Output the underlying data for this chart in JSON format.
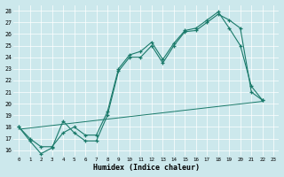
{
  "xlabel": "Humidex (Indice chaleur)",
  "bg_color": "#cce8ec",
  "grid_color": "#b8d8dc",
  "line_color": "#1a7a6a",
  "xlim": [
    -0.5,
    23.5
  ],
  "ylim": [
    15.5,
    28.5
  ],
  "xticks": [
    0,
    1,
    2,
    3,
    4,
    5,
    6,
    7,
    8,
    9,
    10,
    11,
    12,
    13,
    14,
    15,
    16,
    17,
    18,
    19,
    20,
    21,
    22,
    23
  ],
  "yticks": [
    16,
    17,
    18,
    19,
    20,
    21,
    22,
    23,
    24,
    25,
    26,
    27,
    28
  ],
  "s1x": [
    0,
    1,
    2,
    3,
    4,
    5,
    6,
    7,
    8,
    9,
    10,
    11,
    12,
    13,
    14,
    15,
    16,
    17,
    18,
    19,
    20,
    21,
    22
  ],
  "s1y": [
    18.0,
    16.8,
    15.7,
    16.2,
    18.5,
    17.5,
    16.8,
    16.8,
    19.0,
    22.8,
    24.0,
    24.0,
    25.0,
    23.5,
    25.0,
    26.2,
    26.3,
    27.0,
    27.7,
    27.2,
    26.5,
    21.0,
    20.3
  ],
  "s2x": [
    0,
    1,
    2,
    3,
    4,
    5,
    6,
    7,
    8,
    9,
    10,
    11,
    12,
    13,
    14,
    15,
    16,
    17,
    18,
    19,
    20,
    21,
    22
  ],
  "s2y": [
    18.0,
    17.0,
    16.3,
    16.3,
    17.5,
    18.0,
    17.3,
    17.3,
    19.3,
    23.0,
    24.2,
    24.5,
    25.3,
    23.8,
    25.2,
    26.3,
    26.5,
    27.2,
    27.9,
    26.5,
    25.0,
    21.5,
    20.3
  ],
  "s3x": [
    0,
    22
  ],
  "s3y": [
    17.8,
    20.2
  ]
}
